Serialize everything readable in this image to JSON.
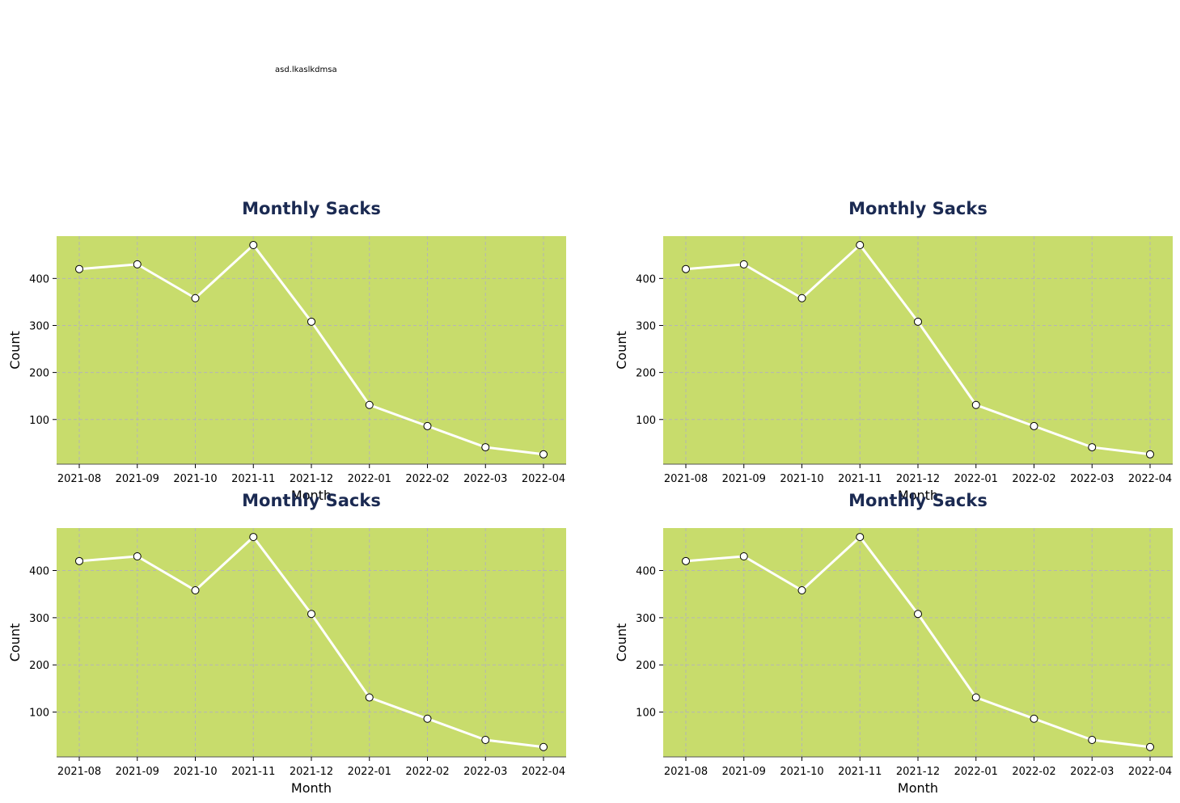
{
  "note": "asd.lkaslkdmsa",
  "colors": {
    "plot_background": "#c8dc6c",
    "line": "#ffffff",
    "marker_face": "#ffffff",
    "marker_edge": "#000000",
    "title": "#1b2a52",
    "grid": "#b5b5b5"
  },
  "chart_data": [
    {
      "type": "line",
      "title": "Monthly Sacks",
      "xlabel": "Month",
      "ylabel": "Count",
      "categories": [
        "2021-08",
        "2021-09",
        "2021-10",
        "2021-11",
        "2021-12",
        "2022-01",
        "2022-02",
        "2022-03",
        "2022-04"
      ],
      "values": [
        420,
        430,
        358,
        471,
        308,
        131,
        86,
        41,
        26
      ],
      "y_ticks": [
        100,
        200,
        300,
        400
      ],
      "ylim": [
        5,
        490
      ],
      "grid": true
    },
    {
      "type": "line",
      "title": "Monthly Sacks",
      "xlabel": "Month",
      "ylabel": "Count",
      "categories": [
        "2021-08",
        "2021-09",
        "2021-10",
        "2021-11",
        "2021-12",
        "2022-01",
        "2022-02",
        "2022-03",
        "2022-04"
      ],
      "values": [
        420,
        430,
        358,
        471,
        308,
        131,
        86,
        41,
        26
      ],
      "y_ticks": [
        100,
        200,
        300,
        400
      ],
      "ylim": [
        5,
        490
      ],
      "grid": true
    },
    {
      "type": "line",
      "title": "Monthly Sacks",
      "xlabel": "Month",
      "ylabel": "Count",
      "categories": [
        "2021-08",
        "2021-09",
        "2021-10",
        "2021-11",
        "2021-12",
        "2022-01",
        "2022-02",
        "2022-03",
        "2022-04"
      ],
      "values": [
        420,
        430,
        358,
        471,
        308,
        131,
        86,
        41,
        26
      ],
      "y_ticks": [
        100,
        200,
        300,
        400
      ],
      "ylim": [
        5,
        490
      ],
      "grid": true
    },
    {
      "type": "line",
      "title": "Monthly Sacks",
      "xlabel": "Month",
      "ylabel": "Count",
      "categories": [
        "2021-08",
        "2021-09",
        "2021-10",
        "2021-11",
        "2021-12",
        "2022-01",
        "2022-02",
        "2022-03",
        "2022-04"
      ],
      "values": [
        420,
        430,
        358,
        471,
        308,
        131,
        86,
        41,
        26
      ],
      "y_ticks": [
        100,
        200,
        300,
        400
      ],
      "ylim": [
        5,
        490
      ],
      "grid": true
    }
  ]
}
